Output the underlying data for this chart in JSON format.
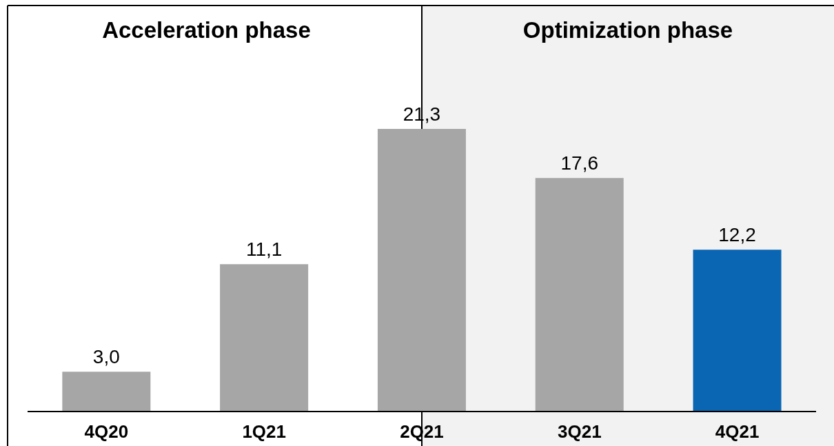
{
  "chart_data": {
    "type": "bar",
    "categories": [
      "4Q20",
      "1Q21",
      "2Q21",
      "3Q21",
      "4Q21"
    ],
    "values": [
      3.0,
      11.1,
      21.3,
      17.6,
      12.2
    ],
    "colors": [
      "#a6a6a6",
      "#a6a6a6",
      "#a6a6a6",
      "#a6a6a6",
      "#0a66b2"
    ],
    "value_labels": [
      "3,0",
      "11,1",
      "21,3",
      "17,6",
      "12,2"
    ],
    "annotations": [
      "Acceleration phase"
    ],
    "bands": [
      {
        "axis": "x",
        "from": "2Q21",
        "to": "4Q21",
        "label": "Optimization phase",
        "color": "#f2f2f2"
      }
    ]
  }
}
